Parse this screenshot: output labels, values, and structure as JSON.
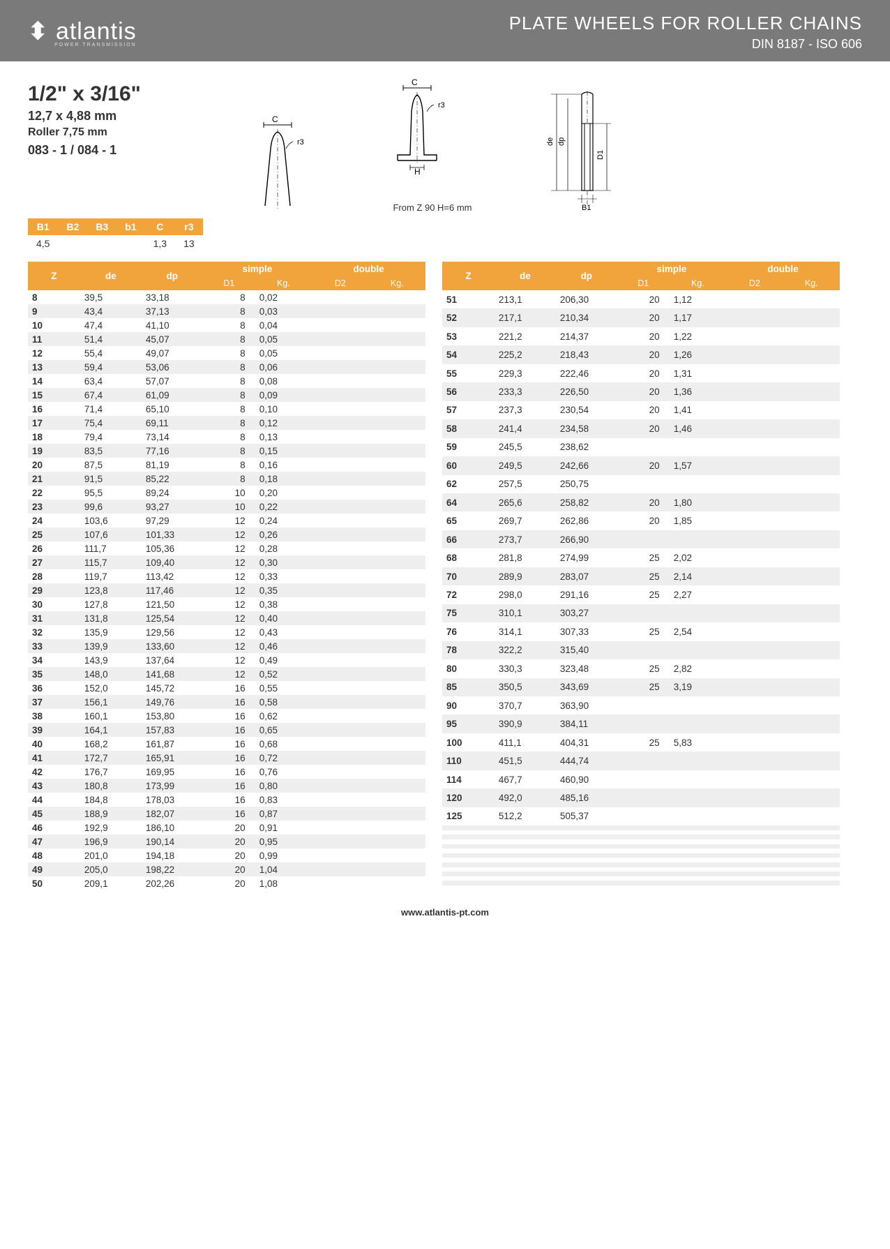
{
  "header": {
    "logo": "atlantis",
    "logo_sub": "POWER TRANSMISSION",
    "title": "PLATE WHEELS FOR ROLLER CHAINS",
    "subtitle": "DIN 8187 - ISO 606"
  },
  "spec": {
    "size": "1/2\" x 3/16\"",
    "mm": "12,7 x 4,88 mm",
    "roller": "Roller 7,75 mm",
    "code": "083 - 1 / 084 - 1"
  },
  "note": "From Z 90 H=6 mm",
  "mini": {
    "headers": [
      "B1",
      "B2",
      "B3",
      "b1",
      "C",
      "r3"
    ],
    "row": [
      "4,5",
      "",
      "",
      "",
      "1,3",
      "13"
    ]
  },
  "table_headers": {
    "z": "Z",
    "de": "de",
    "dp": "dp",
    "simple": "simple",
    "double": "double",
    "d1": "D1",
    "kg": "Kg.",
    "d2": "D2",
    "kg2": "Kg."
  },
  "left": [
    [
      "8",
      "39,5",
      "33,18",
      "8",
      "0,02"
    ],
    [
      "9",
      "43,4",
      "37,13",
      "8",
      "0,03"
    ],
    [
      "10",
      "47,4",
      "41,10",
      "8",
      "0,04"
    ],
    [
      "11",
      "51,4",
      "45,07",
      "8",
      "0,05"
    ],
    [
      "12",
      "55,4",
      "49,07",
      "8",
      "0,05"
    ],
    [
      "13",
      "59,4",
      "53,06",
      "8",
      "0,06"
    ],
    [
      "14",
      "63,4",
      "57,07",
      "8",
      "0,08"
    ],
    [
      "15",
      "67,4",
      "61,09",
      "8",
      "0,09"
    ],
    [
      "16",
      "71,4",
      "65,10",
      "8",
      "0,10"
    ],
    [
      "17",
      "75,4",
      "69,11",
      "8",
      "0,12"
    ],
    [
      "18",
      "79,4",
      "73,14",
      "8",
      "0,13"
    ],
    [
      "19",
      "83,5",
      "77,16",
      "8",
      "0,15"
    ],
    [
      "20",
      "87,5",
      "81,19",
      "8",
      "0,16"
    ],
    [
      "21",
      "91,5",
      "85,22",
      "8",
      "0,18"
    ],
    [
      "22",
      "95,5",
      "89,24",
      "10",
      "0,20"
    ],
    [
      "23",
      "99,6",
      "93,27",
      "10",
      "0,22"
    ],
    [
      "24",
      "103,6",
      "97,29",
      "12",
      "0,24"
    ],
    [
      "25",
      "107,6",
      "101,33",
      "12",
      "0,26"
    ],
    [
      "26",
      "111,7",
      "105,36",
      "12",
      "0,28"
    ],
    [
      "27",
      "115,7",
      "109,40",
      "12",
      "0,30"
    ],
    [
      "28",
      "119,7",
      "113,42",
      "12",
      "0,33"
    ],
    [
      "29",
      "123,8",
      "117,46",
      "12",
      "0,35"
    ],
    [
      "30",
      "127,8",
      "121,50",
      "12",
      "0,38"
    ],
    [
      "31",
      "131,8",
      "125,54",
      "12",
      "0,40"
    ],
    [
      "32",
      "135,9",
      "129,56",
      "12",
      "0,43"
    ],
    [
      "33",
      "139,9",
      "133,60",
      "12",
      "0,46"
    ],
    [
      "34",
      "143,9",
      "137,64",
      "12",
      "0,49"
    ],
    [
      "35",
      "148,0",
      "141,68",
      "12",
      "0,52"
    ],
    [
      "36",
      "152,0",
      "145,72",
      "16",
      "0,55"
    ],
    [
      "37",
      "156,1",
      "149,76",
      "16",
      "0,58"
    ],
    [
      "38",
      "160,1",
      "153,80",
      "16",
      "0,62"
    ],
    [
      "39",
      "164,1",
      "157,83",
      "16",
      "0,65"
    ],
    [
      "40",
      "168,2",
      "161,87",
      "16",
      "0,68"
    ],
    [
      "41",
      "172,7",
      "165,91",
      "16",
      "0,72"
    ],
    [
      "42",
      "176,7",
      "169,95",
      "16",
      "0,76"
    ],
    [
      "43",
      "180,8",
      "173,99",
      "16",
      "0,80"
    ],
    [
      "44",
      "184,8",
      "178,03",
      "16",
      "0,83"
    ],
    [
      "45",
      "188,9",
      "182,07",
      "16",
      "0,87"
    ],
    [
      "46",
      "192,9",
      "186,10",
      "20",
      "0,91"
    ],
    [
      "47",
      "196,9",
      "190,14",
      "20",
      "0,95"
    ],
    [
      "48",
      "201,0",
      "194,18",
      "20",
      "0,99"
    ],
    [
      "49",
      "205,0",
      "198,22",
      "20",
      "1,04"
    ],
    [
      "50",
      "209,1",
      "202,26",
      "20",
      "1,08"
    ]
  ],
  "right": [
    [
      "51",
      "213,1",
      "206,30",
      "20",
      "1,12"
    ],
    [
      "52",
      "217,1",
      "210,34",
      "20",
      "1,17"
    ],
    [
      "53",
      "221,2",
      "214,37",
      "20",
      "1,22"
    ],
    [
      "54",
      "225,2",
      "218,43",
      "20",
      "1,26"
    ],
    [
      "55",
      "229,3",
      "222,46",
      "20",
      "1,31"
    ],
    [
      "56",
      "233,3",
      "226,50",
      "20",
      "1,36"
    ],
    [
      "57",
      "237,3",
      "230,54",
      "20",
      "1,41"
    ],
    [
      "58",
      "241,4",
      "234,58",
      "20",
      "1,46"
    ],
    [
      "59",
      "245,5",
      "238,62",
      "",
      ""
    ],
    [
      "60",
      "249,5",
      "242,66",
      "20",
      "1,57"
    ],
    [
      "62",
      "257,5",
      "250,75",
      "",
      ""
    ],
    [
      "64",
      "265,6",
      "258,82",
      "20",
      "1,80"
    ],
    [
      "65",
      "269,7",
      "262,86",
      "20",
      "1,85"
    ],
    [
      "66",
      "273,7",
      "266,90",
      "",
      ""
    ],
    [
      "68",
      "281,8",
      "274,99",
      "25",
      "2,02"
    ],
    [
      "70",
      "289,9",
      "283,07",
      "25",
      "2,14"
    ],
    [
      "72",
      "298,0",
      "291,16",
      "25",
      "2,27"
    ],
    [
      "75",
      "310,1",
      "303,27",
      "",
      ""
    ],
    [
      "76",
      "314,1",
      "307,33",
      "25",
      "2,54"
    ],
    [
      "78",
      "322,2",
      "315,40",
      "",
      ""
    ],
    [
      "80",
      "330,3",
      "323,48",
      "25",
      "2,82"
    ],
    [
      "85",
      "350,5",
      "343,69",
      "25",
      "3,19"
    ],
    [
      "90",
      "370,7",
      "363,90",
      "",
      ""
    ],
    [
      "95",
      "390,9",
      "384,11",
      "",
      ""
    ],
    [
      "100",
      "411,1",
      "404,31",
      "25",
      "5,83"
    ],
    [
      "110",
      "451,5",
      "444,74",
      "",
      ""
    ],
    [
      "114",
      "467,7",
      "460,90",
      "",
      ""
    ],
    [
      "120",
      "492,0",
      "485,16",
      "",
      ""
    ],
    [
      "125",
      "512,2",
      "505,37",
      "",
      ""
    ],
    [
      "",
      "",
      "",
      "",
      ""
    ],
    [
      "",
      "",
      "",
      "",
      ""
    ],
    [
      "",
      "",
      "",
      "",
      ""
    ],
    [
      "",
      "",
      "",
      "",
      ""
    ],
    [
      "",
      "",
      "",
      "",
      ""
    ],
    [
      "",
      "",
      "",
      "",
      ""
    ],
    [
      "",
      "",
      "",
      "",
      ""
    ],
    [
      "",
      "",
      "",
      "",
      ""
    ],
    [
      "",
      "",
      "",
      "",
      ""
    ],
    [
      "",
      "",
      "",
      "",
      ""
    ],
    [
      "",
      "",
      "",
      "",
      ""
    ],
    [
      "",
      "",
      "",
      "",
      ""
    ],
    [
      "",
      "",
      "",
      "",
      ""
    ],
    [
      "",
      "",
      "",
      "",
      ""
    ]
  ],
  "footer": "www.atlantis-pt.com",
  "labels": {
    "c": "C",
    "r3": "r3",
    "h": "H",
    "de": "de",
    "dp": "dp",
    "d1": "D1",
    "b1": "B1"
  }
}
